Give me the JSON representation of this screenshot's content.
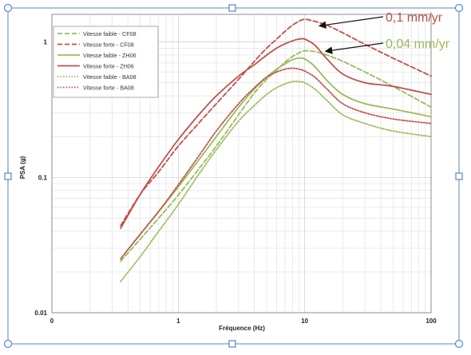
{
  "chart_data": {
    "type": "line",
    "title": "",
    "xlabel": "Fréquence (Hz)",
    "ylabel": "PSA (g)",
    "x_scale": "log",
    "y_scale": "log",
    "xlim": [
      0.1,
      100
    ],
    "ylim": [
      0.01,
      1.6
    ],
    "grid": true,
    "legend_position": "top-left",
    "x_ticks": [
      {
        "value": 0.1,
        "label": "0"
      },
      {
        "value": 1,
        "label": "1"
      },
      {
        "value": 10,
        "label": "10"
      },
      {
        "value": 100,
        "label": "100"
      }
    ],
    "y_ticks": [
      {
        "value": 0.01,
        "label": "0.01"
      },
      {
        "value": 0.1,
        "label": "0.1"
      },
      {
        "value": 1,
        "label": "1"
      }
    ],
    "series": [
      {
        "name": "Vitesse faible - CF08",
        "color": "#9bbb59",
        "dash": "dashed",
        "x": [
          0.35,
          0.5,
          0.7,
          1,
          1.5,
          2,
          3,
          4,
          5,
          6,
          7,
          8,
          9,
          10,
          12,
          15,
          20,
          30,
          50,
          100
        ],
        "y": [
          0.024,
          0.035,
          0.05,
          0.074,
          0.12,
          0.17,
          0.29,
          0.42,
          0.53,
          0.62,
          0.71,
          0.78,
          0.83,
          0.86,
          0.85,
          0.8,
          0.72,
          0.6,
          0.47,
          0.33
        ]
      },
      {
        "name": "Vitesse forte - CF08",
        "color": "#c0504d",
        "dash": "dashed",
        "x": [
          0.35,
          0.5,
          0.7,
          1,
          1.5,
          2,
          3,
          4,
          5,
          6,
          7,
          8,
          9,
          10,
          12,
          15,
          20,
          30,
          50,
          100
        ],
        "y": [
          0.044,
          0.075,
          0.11,
          0.17,
          0.26,
          0.35,
          0.53,
          0.72,
          0.9,
          1.05,
          1.2,
          1.33,
          1.42,
          1.47,
          1.42,
          1.33,
          1.17,
          0.96,
          0.76,
          0.56
        ]
      },
      {
        "name": "Vitesse faible - ZH06",
        "color": "#9bbb59",
        "dash": "solid",
        "x": [
          0.35,
          0.5,
          0.7,
          1,
          1.5,
          2,
          3,
          4,
          5,
          6,
          7,
          8,
          9,
          10,
          12,
          15,
          20,
          30,
          50,
          100
        ],
        "y": [
          0.025,
          0.038,
          0.056,
          0.085,
          0.14,
          0.2,
          0.33,
          0.45,
          0.55,
          0.63,
          0.69,
          0.74,
          0.76,
          0.75,
          0.66,
          0.52,
          0.41,
          0.35,
          0.32,
          0.28
        ]
      },
      {
        "name": "Vitesse forte - ZH06",
        "color": "#c0504d",
        "dash": "solid",
        "x": [
          0.35,
          0.5,
          0.7,
          1,
          1.5,
          2,
          3,
          4,
          5,
          6,
          7,
          8,
          9,
          10,
          12,
          15,
          20,
          30,
          50,
          100
        ],
        "y": [
          0.042,
          0.075,
          0.12,
          0.19,
          0.3,
          0.4,
          0.56,
          0.68,
          0.8,
          0.9,
          0.97,
          1.02,
          1.05,
          1.05,
          0.95,
          0.75,
          0.58,
          0.5,
          0.47,
          0.41
        ]
      },
      {
        "name": "Vitesse faible - BA08",
        "color": "#9bbb59",
        "dash": "dotted",
        "x": [
          0.35,
          0.5,
          0.7,
          1,
          1.5,
          2,
          3,
          4,
          5,
          6,
          7,
          8,
          9,
          10,
          12,
          15,
          20,
          30,
          50,
          100
        ],
        "y": [
          0.017,
          0.026,
          0.04,
          0.063,
          0.11,
          0.16,
          0.26,
          0.34,
          0.41,
          0.46,
          0.49,
          0.51,
          0.51,
          0.5,
          0.45,
          0.37,
          0.29,
          0.25,
          0.22,
          0.2
        ]
      },
      {
        "name": "Vitesse forte - BA08",
        "color": "#c0504d",
        "dash": "dotted",
        "x": [
          0.35,
          0.5,
          0.7,
          1,
          1.5,
          2,
          3,
          4,
          5,
          6,
          7,
          8,
          9,
          10,
          12,
          15,
          20,
          30,
          50,
          100
        ],
        "y": [
          0.025,
          0.038,
          0.056,
          0.088,
          0.15,
          0.22,
          0.35,
          0.46,
          0.55,
          0.6,
          0.63,
          0.64,
          0.63,
          0.61,
          0.55,
          0.45,
          0.35,
          0.3,
          0.27,
          0.25
        ]
      }
    ],
    "annotations": [
      {
        "text": "0,1 mm/yr",
        "color": "#c0504d",
        "target": "Vitesse forte - CF08",
        "arrow_to": {
          "x": 12.5,
          "y": 1.28
        }
      },
      {
        "text": "0,04 mm/yr",
        "color": "#9bbb59",
        "target": "Vitesse faible - CF08",
        "arrow_to": {
          "x": 14,
          "y": 0.83
        }
      }
    ]
  }
}
